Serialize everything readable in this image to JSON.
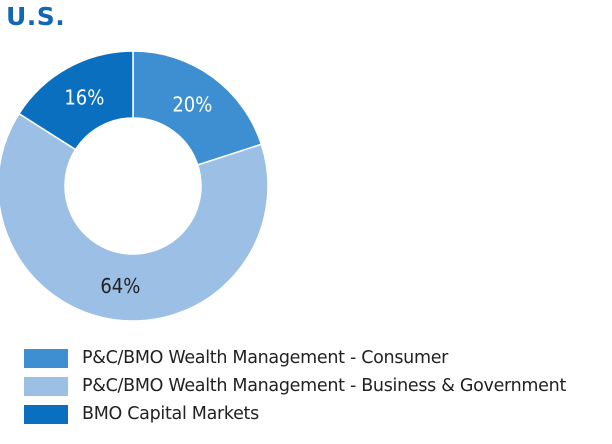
{
  "chart_data": {
    "type": "pie",
    "title": "U.S.",
    "categories": [
      "P&C/BMO Wealth Management - Consumer",
      "P&C/BMO Wealth Management - Business & Government",
      "BMO Capital Markets"
    ],
    "values": [
      20,
      64,
      16
    ],
    "data_labels": [
      "20%",
      "64%",
      "16%"
    ],
    "colors": [
      "#3d8fd1",
      "#9cbfe5",
      "#0a6fbf"
    ],
    "label_colors": [
      "#ffffff",
      "#222222",
      "#ffffff"
    ],
    "donut": true,
    "legend_position": "bottom-left"
  },
  "colors": {
    "title": "#1266b4"
  }
}
